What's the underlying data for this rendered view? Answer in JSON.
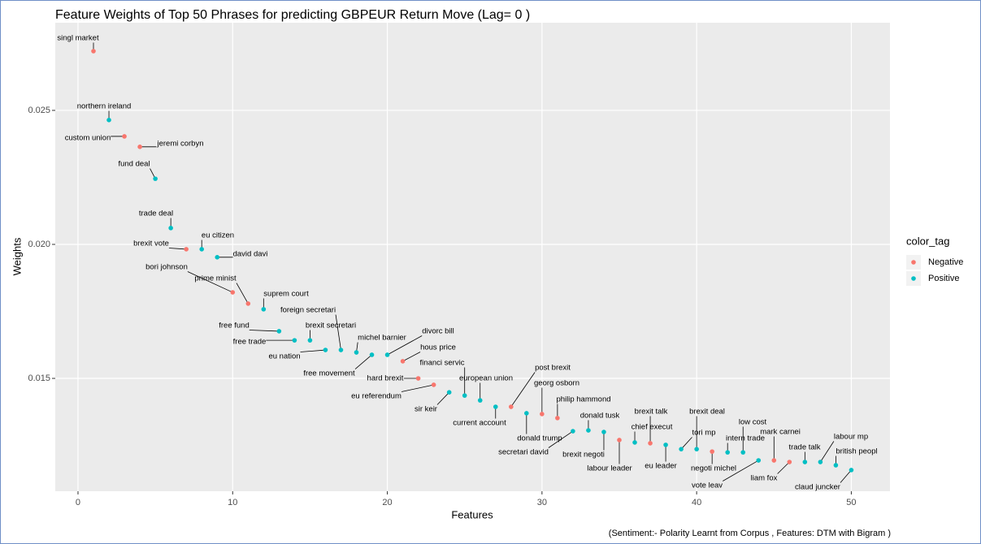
{
  "chart_data": {
    "type": "scatter",
    "title": "Feature Weights of Top 50 Phrases for predicting GBPEUR Return Move (Lag= 0 )",
    "x_label": "Features",
    "y_label": "Weights",
    "caption": "(Sentiment:- Polarity Learnt from Corpus , Features: DTM with Bigram )",
    "x": [
      1,
      2,
      3,
      4,
      5,
      6,
      7,
      8,
      9,
      10,
      11,
      12,
      13,
      14,
      15,
      16,
      17,
      18,
      19,
      20,
      21,
      22,
      23,
      24,
      25,
      26,
      27,
      28,
      29,
      30,
      31,
      32,
      33,
      34,
      35,
      36,
      37,
      38,
      39,
      40,
      41,
      42,
      43,
      44,
      45,
      46,
      47,
      48,
      49,
      50
    ],
    "values": [
      0.02721,
      0.02464,
      0.02403,
      0.02364,
      0.02245,
      0.02061,
      0.01982,
      0.01982,
      0.01952,
      0.01821,
      0.01779,
      0.01758,
      0.01676,
      0.01642,
      0.01642,
      0.01606,
      0.01606,
      0.01597,
      0.01588,
      0.01588,
      0.01564,
      0.015,
      0.01476,
      0.01448,
      0.01436,
      0.01418,
      0.01394,
      0.01394,
      0.0137,
      0.01367,
      0.01352,
      0.01303,
      0.01306,
      0.013,
      0.0127,
      0.01261,
      0.01258,
      0.01252,
      0.01236,
      0.01236,
      0.01227,
      0.01224,
      0.01224,
      0.01194,
      0.01194,
      0.01188,
      0.01188,
      0.01188,
      0.01176,
      0.01158
    ],
    "labels": [
      "singl market",
      "northern ireland",
      "custom union",
      "jeremi corbyn",
      "fund deal",
      "trade deal",
      "brexit vote",
      "eu citizen",
      "david davi",
      "bori johnson",
      "prime minist",
      "suprem court",
      "free fund",
      "free trade",
      "brexit secretari",
      "eu nation",
      "foreign secretari",
      "michel barnier",
      "free movement",
      "divorc bill",
      "hous price",
      "hard brexit",
      "eu referendum",
      "sir keir",
      "financi servic",
      "european union",
      "current account",
      "post brexit",
      "donald trump",
      "georg osborn",
      "philip hammond",
      "secretari david",
      "donald tusk",
      "brexit negoti",
      "labour leader",
      "chief execut",
      "brexit talk",
      "eu leader",
      "tori mp",
      "brexit deal",
      "negoti michel",
      "intern trade",
      "low cost",
      "vote leav",
      "mark carnei",
      "liam fox",
      "trade talk",
      "labour mp",
      "british peopl",
      "claud juncker"
    ],
    "groups": [
      "Negative",
      "Positive",
      "Negative",
      "Negative",
      "Positive",
      "Positive",
      "Negative",
      "Positive",
      "Positive",
      "Negative",
      "Negative",
      "Positive",
      "Positive",
      "Positive",
      "Positive",
      "Positive",
      "Positive",
      "Positive",
      "Positive",
      "Positive",
      "Negative",
      "Negative",
      "Negative",
      "Positive",
      "Positive",
      "Positive",
      "Positive",
      "Negative",
      "Positive",
      "Negative",
      "Negative",
      "Positive",
      "Positive",
      "Positive",
      "Negative",
      "Positive",
      "Negative",
      "Positive",
      "Positive",
      "Positive",
      "Negative",
      "Positive",
      "Positive",
      "Positive",
      "Negative",
      "Negative",
      "Positive",
      "Positive",
      "Positive",
      "Positive"
    ],
    "legend": {
      "title": "color_tag",
      "items": [
        {
          "name": "Negative",
          "color": "#F8766D"
        },
        {
          "name": "Positive",
          "color": "#00BFC4"
        }
      ]
    },
    "xlim": [
      -1.47,
      52.5
    ],
    "ylim": [
      0.01079,
      0.02827
    ],
    "xticks": [
      0,
      10,
      20,
      30,
      40,
      50
    ],
    "yticks": [
      0.015,
      {
        "value": 0.02,
        "label": "0.020"
      },
      0.025
    ],
    "grid": true
  }
}
